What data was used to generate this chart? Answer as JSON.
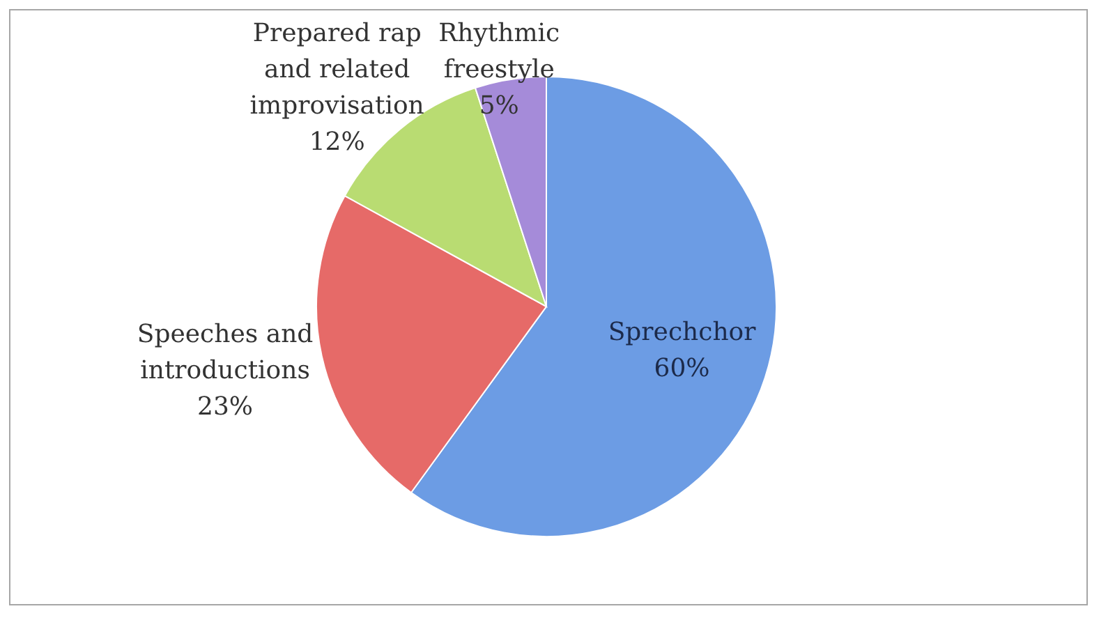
{
  "chart_data": {
    "type": "pie",
    "categories": [
      "Sprechchor",
      "Speeches and introductions",
      "Prepared rap and related improvisation",
      "Rhythmic freestyle"
    ],
    "values": [
      60,
      23,
      12,
      5
    ],
    "value_labels": [
      "60%",
      "23%",
      "12%",
      "5%"
    ],
    "colors": [
      "#6c9ce4",
      "#e66a68",
      "#b9dc72",
      "#a58bd9"
    ]
  }
}
